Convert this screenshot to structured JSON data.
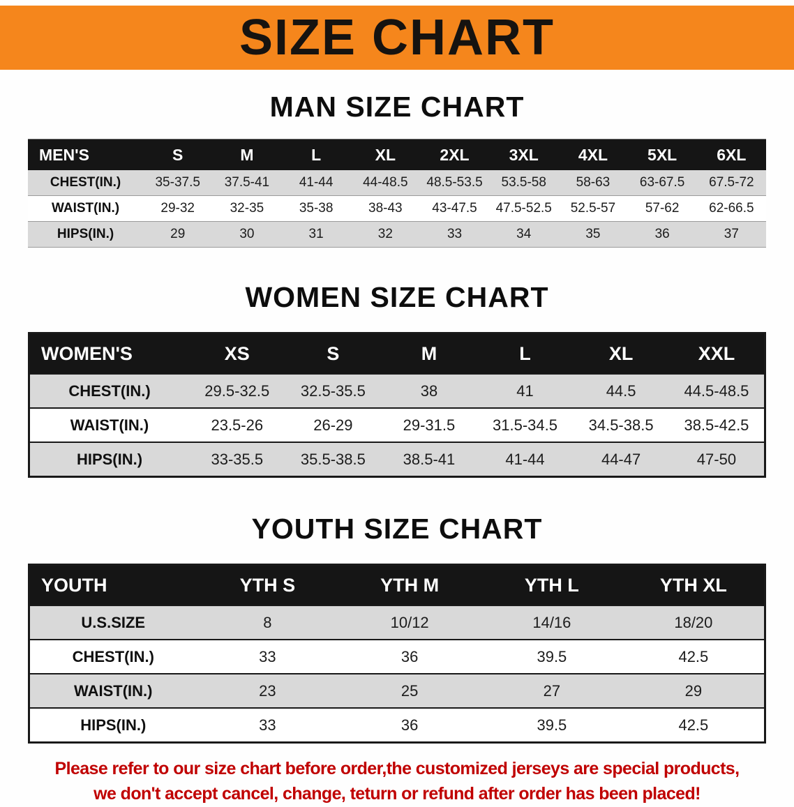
{
  "banner": {
    "title": "SIZE CHART"
  },
  "colors": {
    "banner_bg": "#f5861c",
    "header_bg": "#151515",
    "row_gray": "#d9d9d9",
    "disclaimer_red": "#c00000"
  },
  "sections": [
    {
      "id": "men",
      "heading": "MAN SIZE CHART",
      "table": {
        "header": [
          "MEN'S",
          "S",
          "M",
          "L",
          "XL",
          "2XL",
          "3XL",
          "4XL",
          "5XL",
          "6XL"
        ],
        "rows": [
          [
            "CHEST(IN.)",
            "35-37.5",
            "37.5-41",
            "41-44",
            "44-48.5",
            "48.5-53.5",
            "53.5-58",
            "58-63",
            "63-67.5",
            "67.5-72"
          ],
          [
            "WAIST(IN.)",
            "29-32",
            "32-35",
            "35-38",
            "38-43",
            "43-47.5",
            "47.5-52.5",
            "52.5-57",
            "57-62",
            "62-66.5"
          ],
          [
            "HIPS(IN.)",
            "29",
            "30",
            "31",
            "32",
            "33",
            "34",
            "35",
            "36",
            "37"
          ]
        ]
      }
    },
    {
      "id": "women",
      "heading": "WOMEN SIZE CHART",
      "table": {
        "header": [
          "WOMEN'S",
          "XS",
          "S",
          "M",
          "L",
          "XL",
          "XXL"
        ],
        "rows": [
          [
            "CHEST(IN.)",
            "29.5-32.5",
            "32.5-35.5",
            "38",
            "41",
            "44.5",
            "44.5-48.5"
          ],
          [
            "WAIST(IN.)",
            "23.5-26",
            "26-29",
            "29-31.5",
            "31.5-34.5",
            "34.5-38.5",
            "38.5-42.5"
          ],
          [
            "HIPS(IN.)",
            "33-35.5",
            "35.5-38.5",
            "38.5-41",
            "41-44",
            "44-47",
            "47-50"
          ]
        ]
      }
    },
    {
      "id": "youth",
      "heading": "YOUTH SIZE CHART",
      "table": {
        "header": [
          "YOUTH",
          "YTH S",
          "YTH M",
          "YTH L",
          "YTH XL"
        ],
        "rows": [
          [
            "U.S.SIZE",
            "8",
            "10/12",
            "14/16",
            "18/20"
          ],
          [
            "CHEST(IN.)",
            "33",
            "36",
            "39.5",
            "42.5"
          ],
          [
            "WAIST(IN.)",
            "23",
            "25",
            "27",
            "29"
          ],
          [
            "HIPS(IN.)",
            "33",
            "36",
            "39.5",
            "42.5"
          ]
        ]
      }
    }
  ],
  "disclaimer": {
    "line1": "Please refer to our size chart before order,the customized jerseys are special products,",
    "line2": "we don't accept cancel, change, teturn or refund after order has been placed!"
  }
}
